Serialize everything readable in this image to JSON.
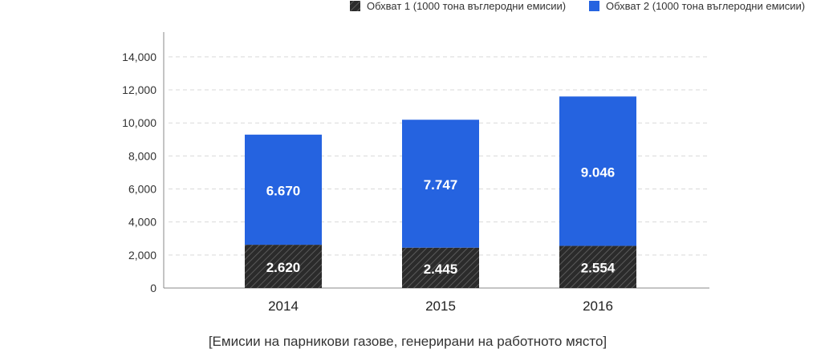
{
  "chart_data": {
    "type": "bar",
    "stacked": true,
    "title": "",
    "caption": "[Емисии на парникови газове, генерирани на работното място]",
    "xlabel": "",
    "ylabel": "",
    "categories": [
      "2014",
      "2015",
      "2016"
    ],
    "series": [
      {
        "name": "Обхват 1 (1000 тона въглеродни емисии)",
        "values": [
          2620,
          2445,
          2554
        ],
        "value_labels": [
          "2.620",
          "2.445",
          "2.554"
        ],
        "color": "#2b2b2b",
        "pattern": "diagonal-hatch"
      },
      {
        "name": "Обхват 2 (1000 тона въглеродни емисии)",
        "values": [
          6670,
          7747,
          9046
        ],
        "value_labels": [
          "6.670",
          "7.747",
          "9.046"
        ],
        "color": "#2563e0",
        "pattern": "solid"
      }
    ],
    "ylim": [
      0,
      15500
    ],
    "yticks": [
      0,
      2000,
      4000,
      6000,
      8000,
      10000,
      12000,
      14000
    ],
    "ytick_labels": [
      "0",
      "2,000",
      "4,000",
      "6,000",
      "8,000",
      "10,000",
      "12,000",
      "14,000"
    ],
    "grid": true,
    "grid_style": "dashed",
    "legend_position": "top-right"
  }
}
